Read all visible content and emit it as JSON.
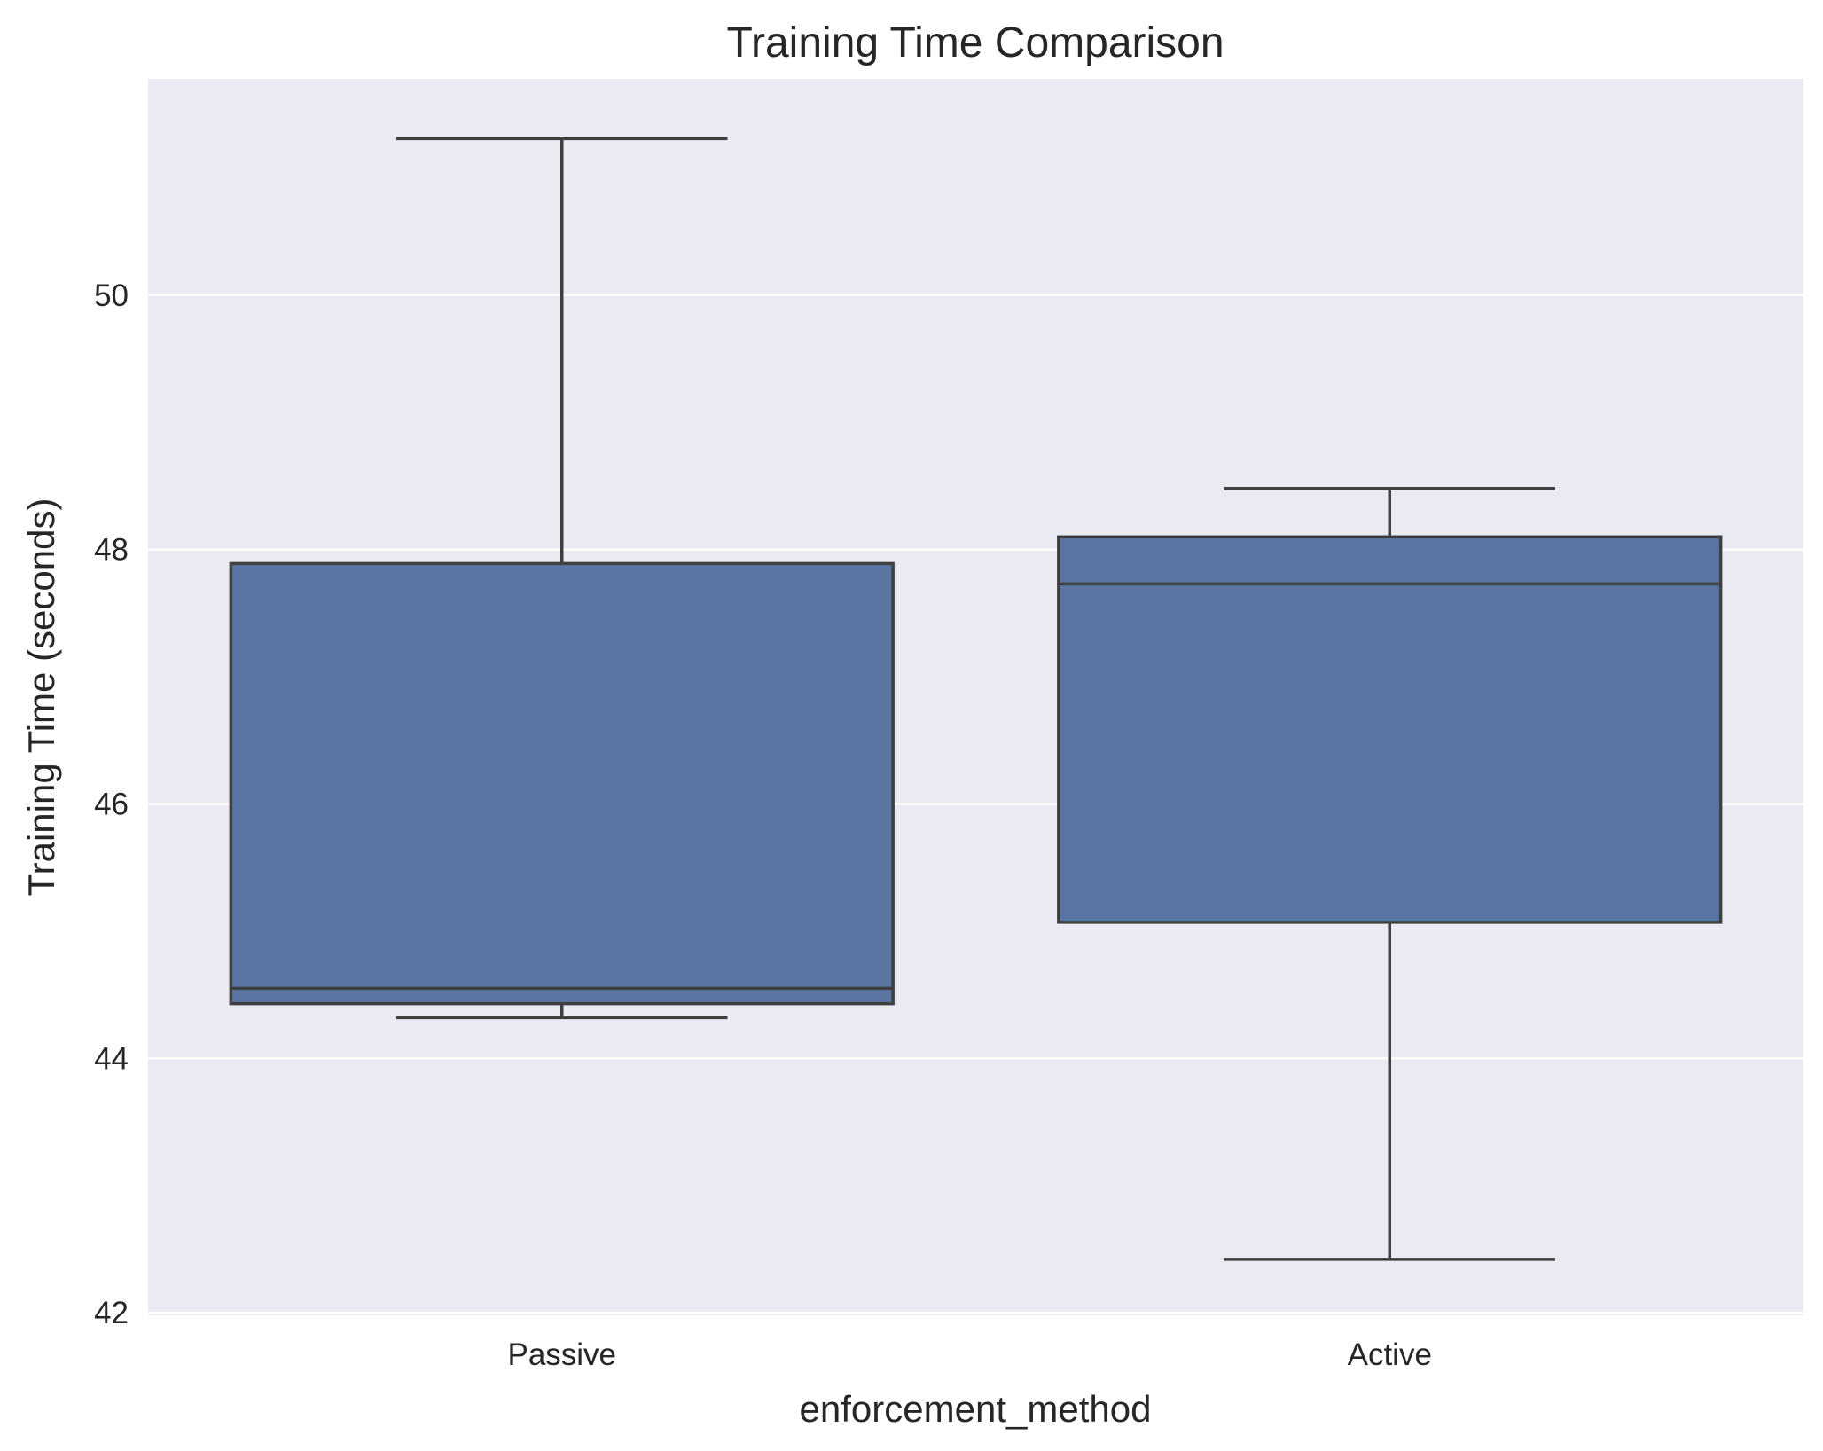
{
  "chart_data": {
    "type": "box",
    "title": "Training Time Comparison",
    "xlabel": "enforcement_method",
    "ylabel": "Training Time (seconds)",
    "ylim": [
      41.98,
      51.7
    ],
    "yticks": [
      42,
      44,
      46,
      48,
      50
    ],
    "grid": true,
    "categories": [
      "Passive",
      "Active"
    ],
    "boxes": [
      {
        "category": "Passive",
        "whisker_low": 44.32,
        "q1": 44.43,
        "median": 44.55,
        "q3": 47.89,
        "whisker_high": 51.23
      },
      {
        "category": "Active",
        "whisker_low": 42.42,
        "q1": 45.07,
        "median": 47.73,
        "q3": 48.1,
        "whisker_high": 48.48
      }
    ],
    "colors": {
      "background": "#eaeaf2",
      "grid": "#ffffff",
      "box_fill": "#5975a4",
      "line": "#3f3f3f"
    }
  }
}
